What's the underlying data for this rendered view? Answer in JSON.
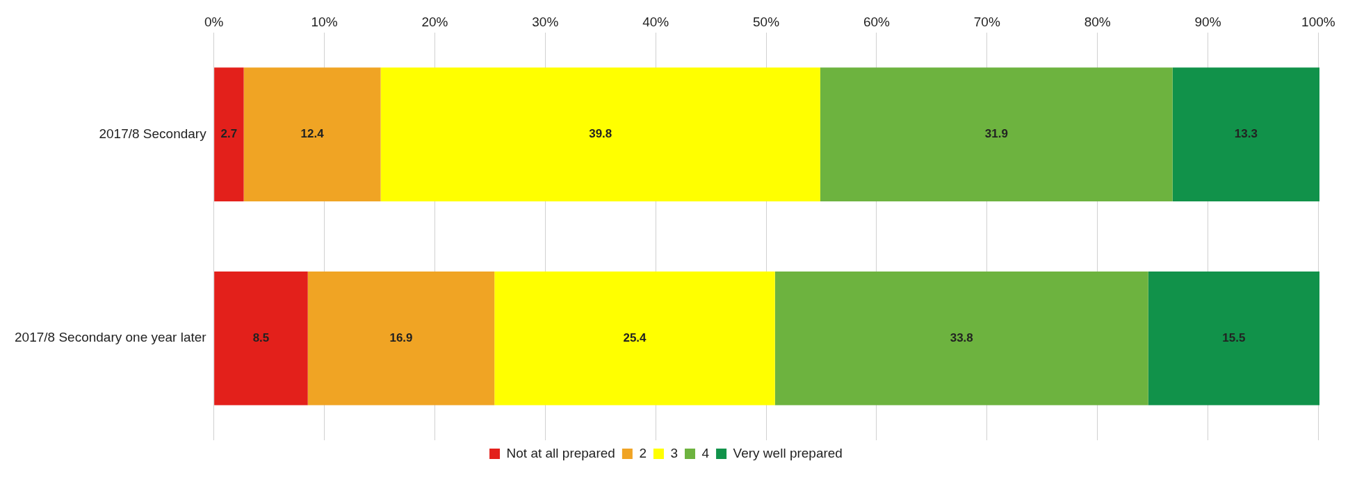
{
  "chart_data": {
    "type": "bar",
    "orientation": "horizontal",
    "stacked": true,
    "categories": [
      "2017/8 Secondary",
      "2017/8 Secondary one year later"
    ],
    "series": [
      {
        "name": "Not at all prepared",
        "color": "#e3201b",
        "values": [
          2.7,
          8.5
        ]
      },
      {
        "name": "2",
        "color": "#f0a424",
        "values": [
          12.4,
          16.9
        ]
      },
      {
        "name": "3",
        "color": "#ffff00",
        "values": [
          39.8,
          25.4
        ]
      },
      {
        "name": "4",
        "color": "#6db33f",
        "values": [
          31.9,
          33.8
        ]
      },
      {
        "name": "Very well prepared",
        "color": "#11924a",
        "values": [
          13.3,
          15.5
        ]
      }
    ],
    "xlim": [
      0,
      100.1
    ],
    "xticks": [
      {
        "value": 0,
        "label": "0%"
      },
      {
        "value": 10,
        "label": "10%"
      },
      {
        "value": 20,
        "label": "20%"
      },
      {
        "value": 30,
        "label": "30%"
      },
      {
        "value": 40,
        "label": "40%"
      },
      {
        "value": 50,
        "label": "50%"
      },
      {
        "value": 60,
        "label": "60%"
      },
      {
        "value": 70,
        "label": "70%"
      },
      {
        "value": 80,
        "label": "80%"
      },
      {
        "value": 90,
        "label": "90%"
      },
      {
        "value": 100,
        "label": "100%"
      }
    ],
    "grid": "x",
    "legend": "bottom",
    "data_labels": true
  }
}
